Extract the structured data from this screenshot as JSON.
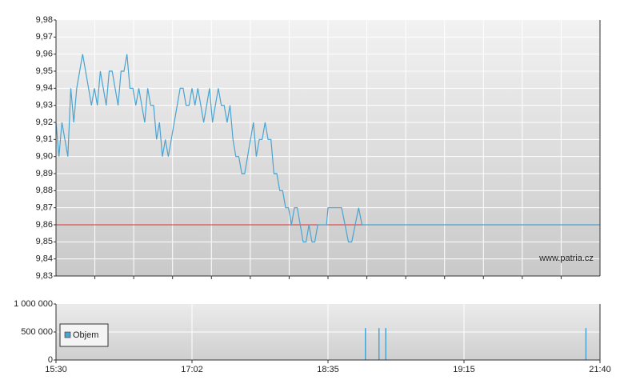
{
  "chart_data": [
    {
      "type": "line",
      "color": "#4aa3d0",
      "hline": 9.86,
      "hline_color": "#e03030",
      "watermark": "www.patria.cz",
      "x": [
        "15:30",
        "15:32",
        "15:34",
        "15:36",
        "15:38",
        "15:40",
        "15:42",
        "15:44",
        "15:46",
        "15:48",
        "15:50",
        "15:52",
        "15:54",
        "15:56",
        "15:58",
        "16:00",
        "16:02",
        "16:04",
        "16:06",
        "16:08",
        "16:10",
        "16:12",
        "16:14",
        "16:16",
        "16:18",
        "16:20",
        "16:22",
        "16:24",
        "16:26",
        "16:28",
        "16:30",
        "16:32",
        "16:34",
        "16:36",
        "16:38",
        "16:40",
        "16:42",
        "16:44",
        "16:46",
        "16:48",
        "16:50",
        "16:52",
        "16:54",
        "16:56",
        "16:58",
        "17:00",
        "17:02",
        "17:04",
        "17:06",
        "17:08",
        "17:10",
        "17:12",
        "17:14",
        "17:16",
        "17:18",
        "17:20",
        "17:22",
        "17:24",
        "17:26",
        "17:28",
        "17:30",
        "17:32",
        "17:34",
        "17:36",
        "17:38",
        "17:40",
        "17:42",
        "17:44",
        "17:46",
        "17:48",
        "17:50",
        "17:52",
        "17:54",
        "17:56",
        "17:58",
        "18:00",
        "18:02",
        "18:04",
        "18:06",
        "18:08",
        "18:10",
        "18:12",
        "18:14",
        "18:16",
        "18:18",
        "18:20",
        "18:22",
        "18:24",
        "18:26",
        "18:28",
        "18:30",
        "18:32",
        "18:34",
        "18:35",
        "18:36",
        "18:37",
        "18:38",
        "18:39",
        "18:40",
        "18:41",
        "18:42",
        "18:43",
        "18:44",
        "18:45",
        "18:46",
        "21:40"
      ],
      "values": [
        9.92,
        9.9,
        9.92,
        9.91,
        9.9,
        9.94,
        9.92,
        9.94,
        9.95,
        9.96,
        9.95,
        9.94,
        9.93,
        9.94,
        9.93,
        9.95,
        9.94,
        9.93,
        9.95,
        9.95,
        9.94,
        9.93,
        9.95,
        9.95,
        9.96,
        9.94,
        9.94,
        9.93,
        9.94,
        9.93,
        9.92,
        9.94,
        9.93,
        9.93,
        9.91,
        9.92,
        9.9,
        9.91,
        9.9,
        9.91,
        9.92,
        9.93,
        9.94,
        9.94,
        9.93,
        9.93,
        9.94,
        9.93,
        9.94,
        9.93,
        9.92,
        9.93,
        9.94,
        9.92,
        9.93,
        9.94,
        9.93,
        9.93,
        9.92,
        9.93,
        9.91,
        9.9,
        9.9,
        9.89,
        9.89,
        9.9,
        9.91,
        9.92,
        9.9,
        9.91,
        9.91,
        9.92,
        9.91,
        9.91,
        9.89,
        9.89,
        9.88,
        9.88,
        9.87,
        9.87,
        9.86,
        9.87,
        9.87,
        9.86,
        9.85,
        9.85,
        9.86,
        9.85,
        9.85,
        9.86,
        9.86,
        9.86,
        9.86,
        9.87,
        9.87,
        9.87,
        9.87,
        9.87,
        9.86,
        9.85,
        9.85,
        9.86,
        9.87,
        9.86,
        9.86,
        9.86
      ],
      "ylim": [
        9.83,
        9.98
      ],
      "yticks": [
        {
          "value": 9.83,
          "label": "9,83"
        },
        {
          "value": 9.84,
          "label": "9,84"
        },
        {
          "value": 9.85,
          "label": "9,85"
        },
        {
          "value": 9.86,
          "label": "9,86"
        },
        {
          "value": 9.87,
          "label": "9,87"
        },
        {
          "value": 9.88,
          "label": "9,88"
        },
        {
          "value": 9.89,
          "label": "9,89"
        },
        {
          "value": 9.9,
          "label": "9,90"
        },
        {
          "value": 9.91,
          "label": "9,91"
        },
        {
          "value": 9.92,
          "label": "9,92"
        },
        {
          "value": 9.93,
          "label": "9,93"
        },
        {
          "value": 9.94,
          "label": "9,94"
        },
        {
          "value": 9.95,
          "label": "9,95"
        },
        {
          "value": 9.96,
          "label": "9,96"
        },
        {
          "value": 9.97,
          "label": "9,97"
        },
        {
          "value": 9.98,
          "label": "9,98"
        }
      ],
      "grid": true
    },
    {
      "type": "bar",
      "legend": "upper left",
      "x": [
        "18:46",
        "18:50",
        "18:52",
        "21:25"
      ],
      "series": [
        {
          "name": "Objem",
          "color": "#4aa3d0",
          "values": [
            570000,
            570000,
            570000,
            570000
          ]
        }
      ],
      "ylim": [
        0,
        1000000
      ],
      "yticks": [
        0,
        {
          "value": 500000,
          "label": "500 000"
        },
        {
          "value": 1000000,
          "label": "1 000 000"
        }
      ],
      "xticks": [
        "15:30",
        "17:02",
        "18:35",
        "19:15",
        "21:40"
      ],
      "grid": true
    }
  ]
}
